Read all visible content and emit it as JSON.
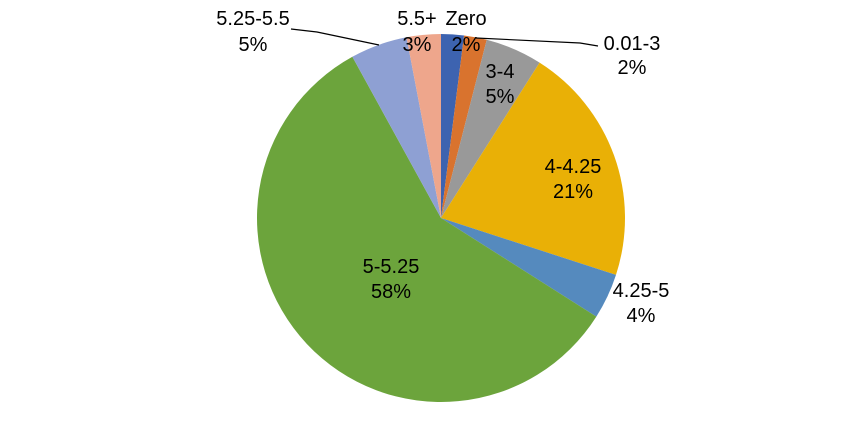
{
  "chart_data": {
    "type": "pie",
    "title": "",
    "unit": "percent",
    "total": 100,
    "start_angle_deg": 0,
    "direction": "clockwise",
    "legend": "none",
    "background_color": "#ffffff",
    "label_text_color": "#000000",
    "label_format": "category name + percentage, two lines",
    "segments": [
      {
        "label": "Zero",
        "value": 2,
        "pct_label": "2%",
        "color": "#3D63B0",
        "label_placement": "outside",
        "leader_line": false
      },
      {
        "label": "0.01-3",
        "value": 2,
        "pct_label": "2%",
        "color": "#D9732E",
        "label_placement": "outside",
        "leader_line": true
      },
      {
        "label": "3-4",
        "value": 5,
        "pct_label": "5%",
        "color": "#999999",
        "label_placement": "inside",
        "leader_line": false
      },
      {
        "label": "4-4.25",
        "value": 21,
        "pct_label": "21%",
        "color": "#E9B006",
        "label_placement": "inside",
        "leader_line": false
      },
      {
        "label": "4.25-5",
        "value": 4,
        "pct_label": "4%",
        "color": "#558ABE",
        "label_placement": "outside",
        "leader_line": false
      },
      {
        "label": "5-5.25",
        "value": 58,
        "pct_label": "58%",
        "color": "#6CA43C",
        "label_placement": "inside",
        "leader_line": false
      },
      {
        "label": "5.25-5.5",
        "value": 5,
        "pct_label": "5%",
        "color": "#8EA0D3",
        "label_placement": "outside",
        "leader_line": true
      },
      {
        "label": "5.5+",
        "value": 3,
        "pct_label": "3%",
        "color": "#EEA68C",
        "label_placement": "outside",
        "leader_line": false
      }
    ]
  }
}
